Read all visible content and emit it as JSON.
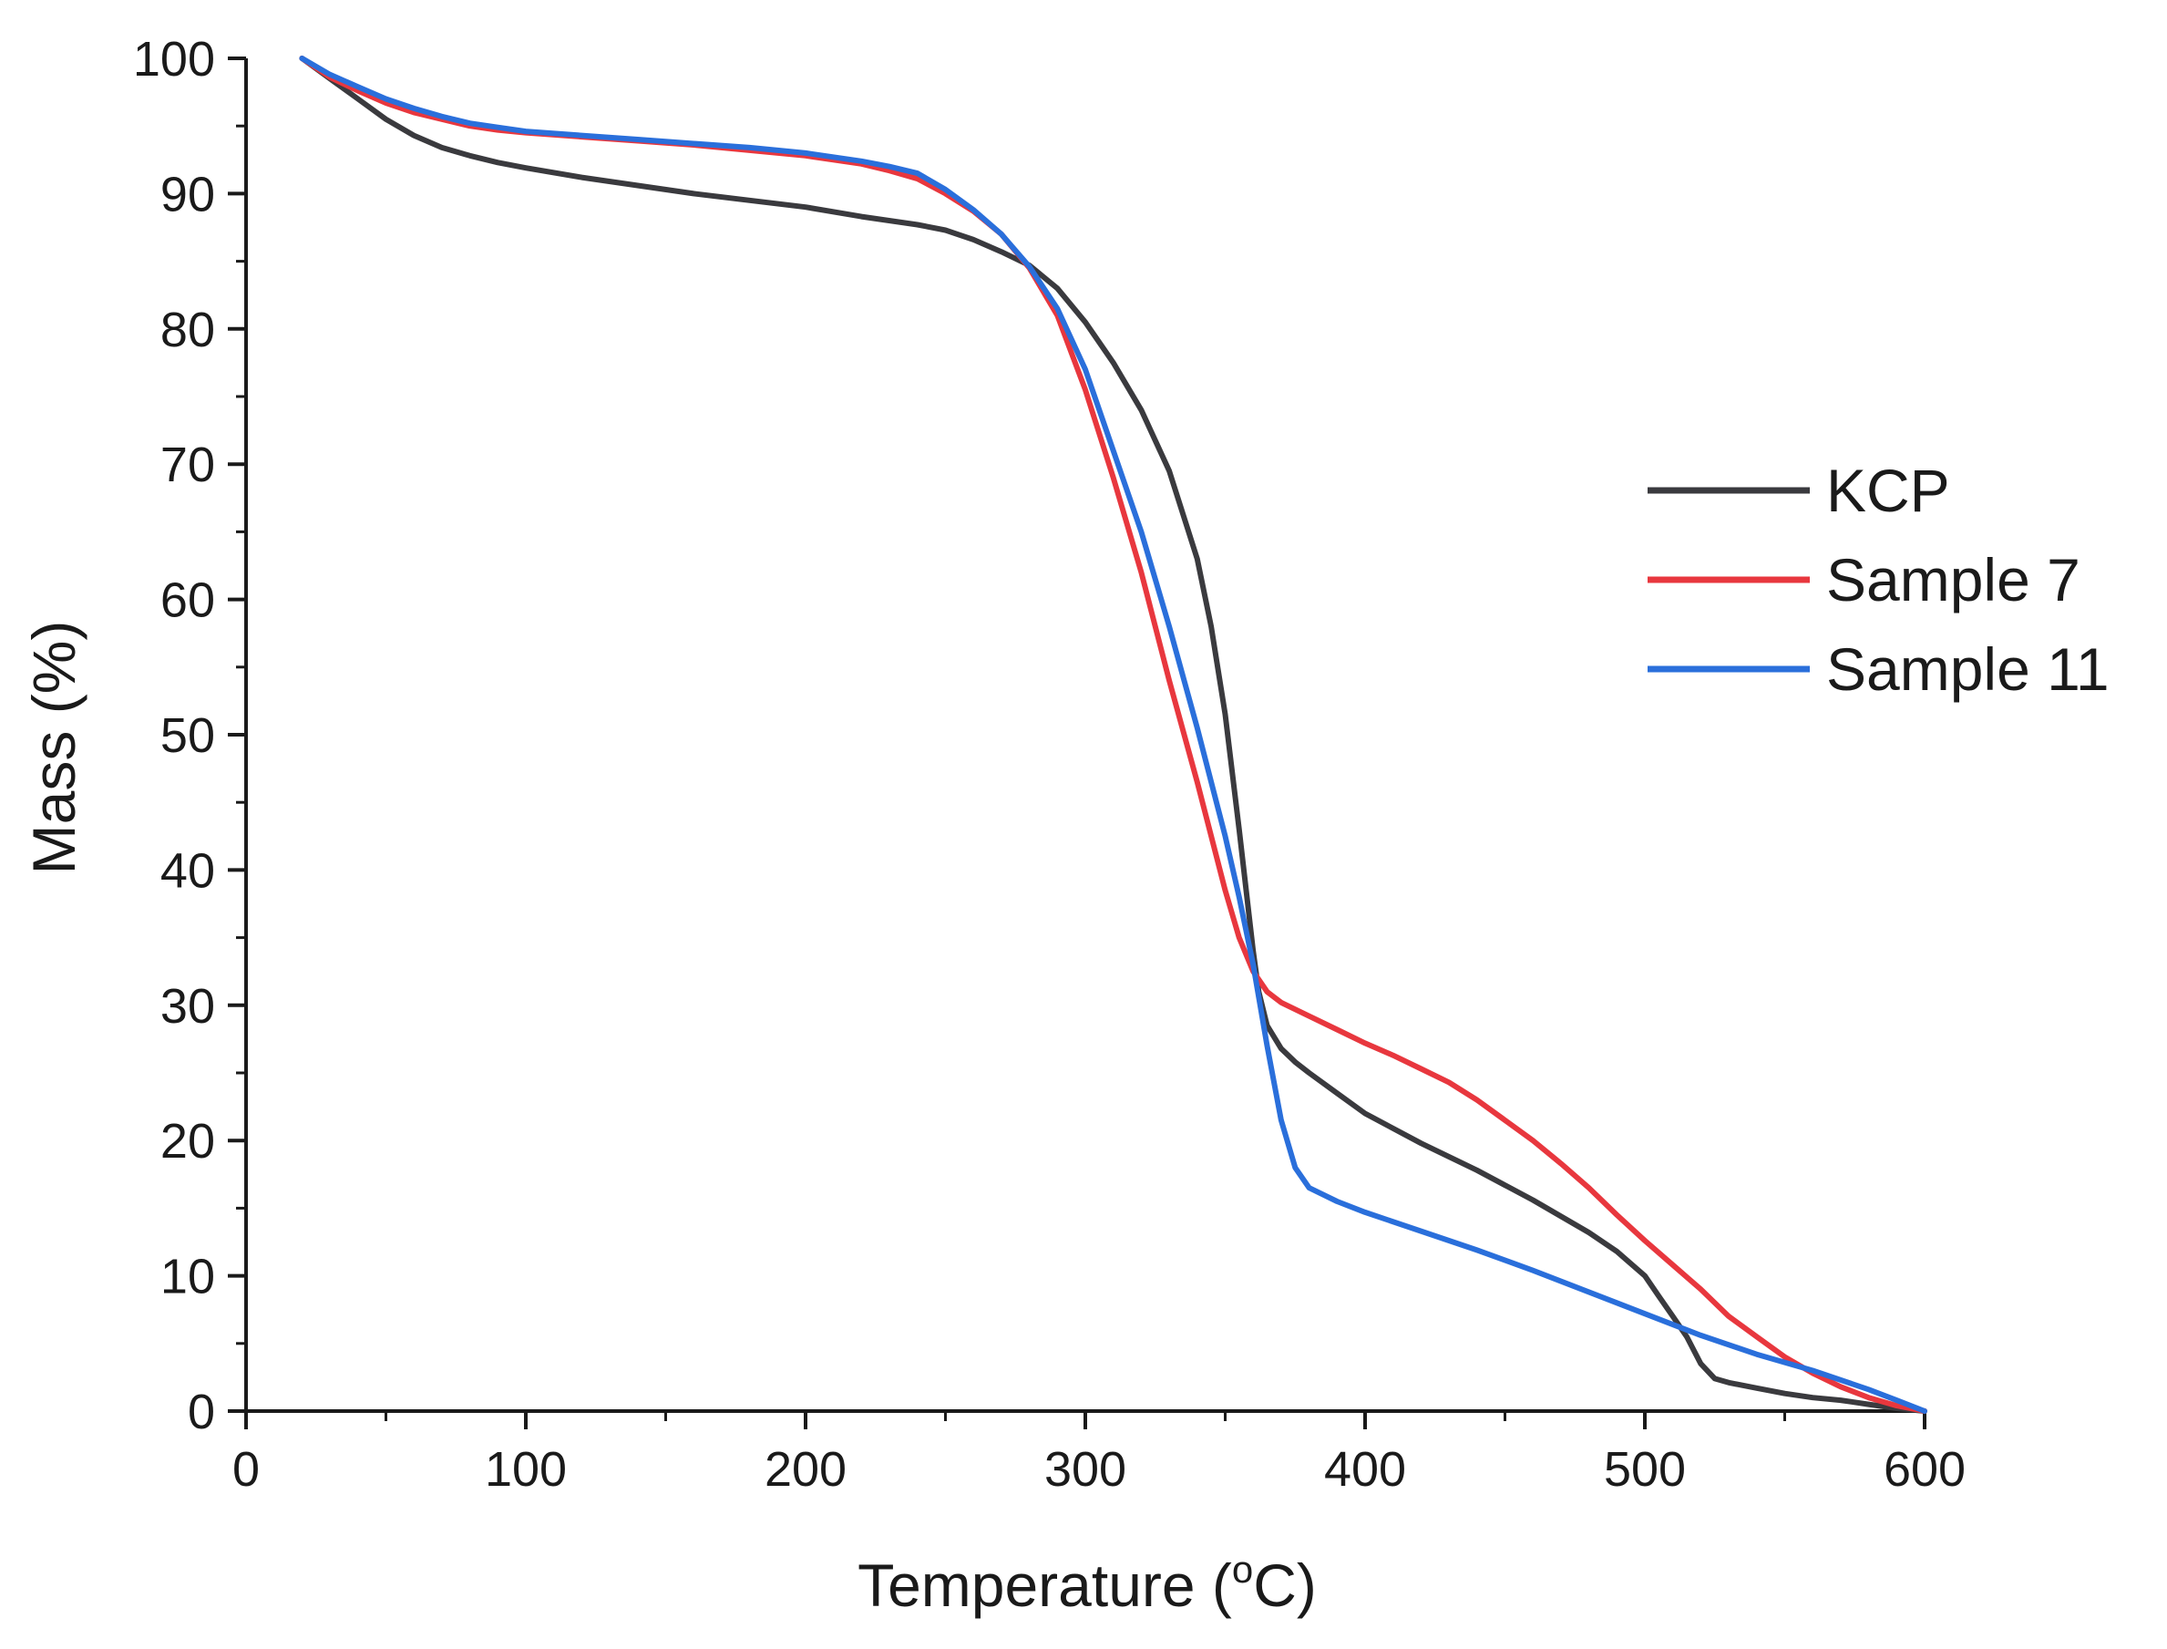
{
  "chart_data": {
    "type": "line",
    "title": "",
    "xlabel": "Temperature (",
    "xlabel_sup": "o",
    "xlabel_tail": "C)",
    "ylabel": "Mass (%)",
    "xlim": [
      0,
      600
    ],
    "ylim": [
      0,
      100
    ],
    "x_ticks": [
      0,
      100,
      200,
      300,
      400,
      500,
      600
    ],
    "y_ticks": [
      0,
      10,
      20,
      30,
      40,
      50,
      60,
      70,
      80,
      90,
      100
    ],
    "grid": false,
    "legend_position": "right",
    "series": [
      {
        "name": "KCP",
        "color": "#3a3a3e",
        "x": [
          20,
          30,
          40,
          50,
          60,
          70,
          80,
          90,
          100,
          120,
          140,
          160,
          180,
          200,
          220,
          240,
          250,
          260,
          270,
          280,
          290,
          300,
          310,
          320,
          330,
          340,
          345,
          350,
          355,
          360,
          362,
          365,
          370,
          375,
          380,
          390,
          400,
          420,
          440,
          460,
          480,
          490,
          500,
          505,
          510,
          515,
          520,
          525,
          530,
          540,
          550,
          560,
          570,
          580,
          590,
          600
        ],
        "y": [
          100,
          98.5,
          97,
          95.5,
          94.3,
          93.4,
          92.8,
          92.3,
          91.9,
          91.2,
          90.6,
          90.0,
          89.5,
          89.0,
          88.3,
          87.7,
          87.3,
          86.6,
          85.7,
          84.7,
          83.0,
          80.5,
          77.5,
          74.0,
          69.5,
          63.0,
          58.0,
          51.5,
          43.0,
          34.0,
          31.0,
          28.5,
          26.8,
          25.8,
          25.0,
          23.5,
          22.0,
          19.8,
          17.8,
          15.6,
          13.2,
          11.8,
          10.0,
          8.5,
          7.0,
          5.5,
          3.5,
          2.4,
          2.1,
          1.7,
          1.3,
          1.0,
          0.8,
          0.5,
          0.2,
          0.0
        ]
      },
      {
        "name": "Sample 7",
        "color": "#e8373e",
        "x": [
          20,
          30,
          40,
          50,
          60,
          70,
          80,
          90,
          100,
          120,
          140,
          160,
          180,
          200,
          220,
          230,
          240,
          250,
          260,
          270,
          280,
          290,
          300,
          310,
          320,
          330,
          340,
          350,
          355,
          360,
          365,
          370,
          380,
          390,
          400,
          410,
          420,
          430,
          440,
          450,
          460,
          470,
          480,
          490,
          500,
          510,
          520,
          530,
          540,
          550,
          560,
          570,
          580,
          590,
          600
        ],
        "y": [
          100,
          98.6,
          97.6,
          96.7,
          96.0,
          95.5,
          95.0,
          94.7,
          94.5,
          94.2,
          93.9,
          93.6,
          93.2,
          92.8,
          92.2,
          91.7,
          91.1,
          90.0,
          88.7,
          87.0,
          84.5,
          81.0,
          75.5,
          69.0,
          62.0,
          54.0,
          46.5,
          38.5,
          35.0,
          32.5,
          31.0,
          30.2,
          29.2,
          28.2,
          27.2,
          26.3,
          25.3,
          24.3,
          23.0,
          21.5,
          20.0,
          18.3,
          16.5,
          14.5,
          12.6,
          10.8,
          9.0,
          7.0,
          5.5,
          4.0,
          2.8,
          1.8,
          1.0,
          0.4,
          0.0
        ]
      },
      {
        "name": "Sample 11",
        "color": "#2a6fdb",
        "x": [
          20,
          30,
          40,
          50,
          60,
          70,
          80,
          90,
          100,
          120,
          140,
          160,
          180,
          200,
          220,
          230,
          240,
          250,
          260,
          270,
          280,
          290,
          300,
          310,
          320,
          330,
          340,
          350,
          355,
          360,
          365,
          370,
          375,
          380,
          390,
          400,
          420,
          440,
          460,
          480,
          500,
          520,
          540,
          560,
          580,
          590,
          600
        ],
        "y": [
          100,
          98.8,
          97.9,
          97.0,
          96.3,
          95.7,
          95.2,
          94.9,
          94.6,
          94.3,
          94.0,
          93.7,
          93.4,
          93.0,
          92.4,
          92.0,
          91.5,
          90.3,
          88.8,
          87.0,
          84.6,
          81.5,
          77.0,
          71.0,
          65.0,
          58.0,
          50.5,
          42.5,
          38.0,
          33.0,
          27.0,
          21.5,
          18.0,
          16.5,
          15.5,
          14.7,
          13.3,
          11.9,
          10.4,
          8.8,
          7.2,
          5.6,
          4.2,
          3.0,
          1.6,
          0.8,
          0.0
        ]
      }
    ]
  }
}
